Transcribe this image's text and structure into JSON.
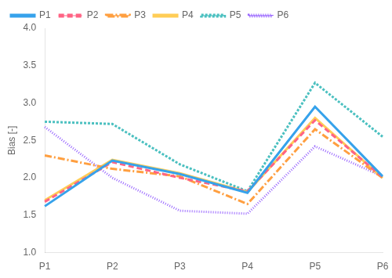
{
  "chart_data": {
    "type": "line",
    "categories": [
      "P1",
      "P2",
      "P3",
      "P4",
      "P5",
      "P6"
    ],
    "series": [
      {
        "name": "P1",
        "values": [
          1.62,
          2.23,
          2.05,
          1.8,
          2.95,
          2.02
        ],
        "line_style": "solid"
      },
      {
        "name": "P2",
        "values": [
          1.68,
          2.21,
          2.0,
          1.82,
          2.77,
          2.01
        ],
        "line_style": "dashed"
      },
      {
        "name": "P3",
        "values": [
          2.3,
          2.12,
          2.02,
          1.65,
          2.65,
          2.0
        ],
        "line_style": "dashdot"
      },
      {
        "name": "P4",
        "values": [
          1.7,
          2.24,
          2.06,
          1.81,
          2.8,
          2.0
        ],
        "line_style": "solid"
      },
      {
        "name": "P5",
        "values": [
          2.75,
          2.72,
          2.18,
          1.82,
          3.27,
          2.55
        ],
        "line_style": "dashed_short"
      },
      {
        "name": "P6",
        "values": [
          2.68,
          2.0,
          1.56,
          1.52,
          2.42,
          2.02
        ],
        "line_style": "dotted"
      }
    ],
    "ylabel": "Bias [-]",
    "ylim": [
      1.0,
      4.0
    ],
    "yticks": [
      {
        "value": 1.0,
        "label": "1.0"
      },
      1.5,
      {
        "value": 2.0,
        "label": "2.0"
      },
      2.5,
      {
        "value": 3.0,
        "label": "3.0"
      },
      3.5,
      {
        "value": 4.0,
        "label": "4.0"
      }
    ],
    "grid": false,
    "legend": "upper left"
  }
}
